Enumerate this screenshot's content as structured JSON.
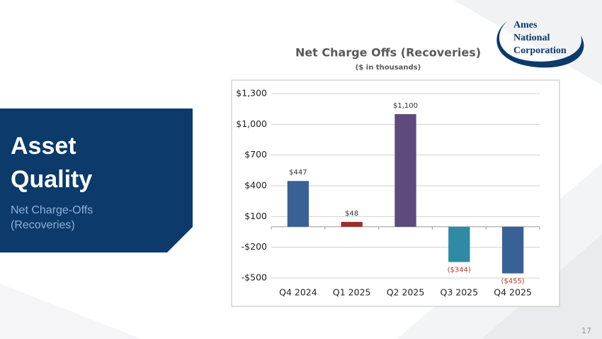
{
  "slide": {
    "heading": [
      "Asset",
      "Quality"
    ],
    "subheading": [
      "Net Charge-Offs",
      "(Recoveries)"
    ],
    "logo": [
      "Ames",
      "National",
      "Corporation"
    ],
    "page_number": "17"
  },
  "chart_data": {
    "type": "bar",
    "title": "Net Charge Offs (Recoveries)",
    "subtitle": "($ in thousands)",
    "categories": [
      "Q4 2024",
      "Q1 2025",
      "Q2 2025",
      "Q3 2025",
      "Q4 2025"
    ],
    "values": [
      447,
      48,
      1100,
      -344,
      -455
    ],
    "value_labels": [
      "$447",
      "$48",
      "$1,100",
      "($344)",
      "($455)"
    ],
    "colors": [
      "#386296",
      "#9b2d2a",
      "#5e4a7d",
      "#2e8ba3",
      "#386296"
    ],
    "ylim": [
      -500,
      1300
    ],
    "yticks": [
      {
        "value": -500,
        "label": "-$500"
      },
      {
        "value": -200,
        "label": "-$200"
      },
      {
        "value": 100,
        "label": "$100"
      },
      {
        "value": 400,
        "label": "$400"
      },
      {
        "value": 700,
        "label": "$700"
      },
      {
        "value": 1000,
        "label": "$1,000"
      },
      {
        "value": 1300,
        "label": "$1,300"
      }
    ],
    "grid": true
  }
}
